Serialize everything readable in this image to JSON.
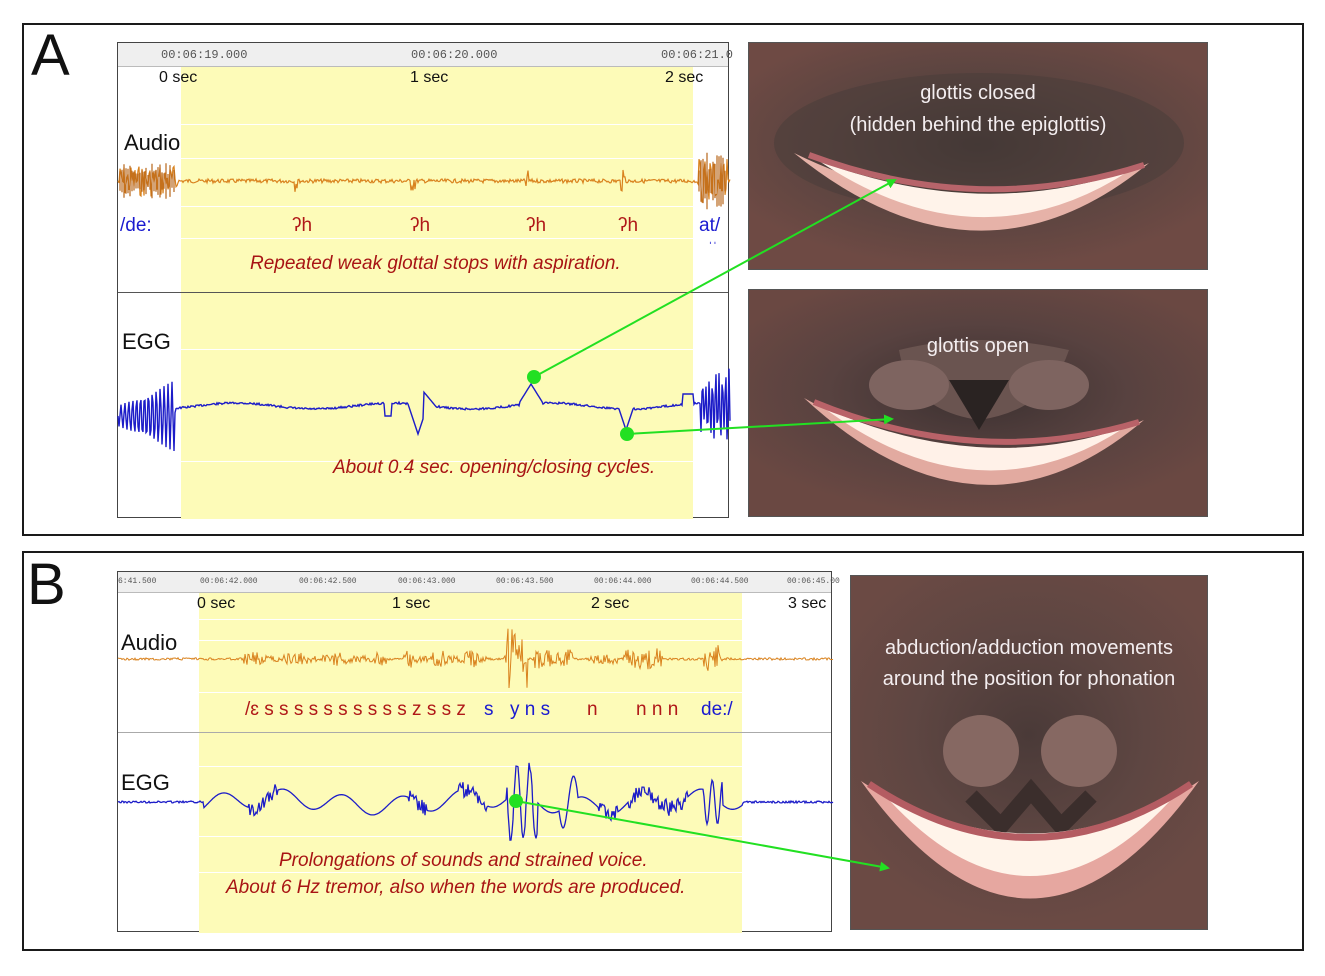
{
  "panels": {
    "A": {
      "letter": "A",
      "ruler_times": [
        "00:06:19.000",
        "00:06:20.000",
        "00:06:21.0"
      ],
      "sec_labels": [
        "0 sec",
        "1 sec",
        "2 sec"
      ],
      "audio_label": "Audio",
      "egg_label": "EGG",
      "phon_start": "/de:",
      "phon_end": "at/",
      "phon_end_mark": "ˈˈ",
      "glottal_marks": [
        "ʔh",
        "ʔh",
        "ʔh",
        "ʔh"
      ],
      "annotation_audio": "Repeated weak glottal stops with aspiration.",
      "annotation_egg": "About 0.4 sec. opening/closing cycles.",
      "photo_top_caption_line1": "glottis closed",
      "photo_top_caption_line2": "(hidden behind the epiglottis)",
      "photo_bottom_caption": "glottis open"
    },
    "B": {
      "letter": "B",
      "ruler_times": [
        "6:41.500",
        "00:06:42.000",
        "00:06:42.500",
        "00:06:43.000",
        "00:06:43.500",
        "00:06:44.000",
        "00:06:44.500",
        "00:06:45.00"
      ],
      "sec_labels": [
        "0 sec",
        "1 sec",
        "2 sec",
        "3 sec"
      ],
      "audio_label": "Audio",
      "egg_label": "EGG",
      "phon_red_1": "/ɛ s s s s s s s s s s z s s z",
      "phon_blue_1": "s",
      "phon_blue_2": "y n s",
      "phon_red_2": "n",
      "phon_red_3": "n n n",
      "phon_blue_3": "de:/",
      "annotation_line1": "Prolongations of sounds and strained voice.",
      "annotation_line2": "About 6 Hz tremor, also when the words are produced.",
      "photo_caption_line1": "abduction/adduction movements",
      "photo_caption_line2": "around the position for phonation"
    }
  },
  "colors": {
    "audio_wave": "#d9821e",
    "audio_wave_dark": "#b8661a",
    "egg_wave": "#1c1cc8",
    "highlight": "#fdfbb8",
    "arrow": "#22e022",
    "annotation": "#a81414"
  }
}
